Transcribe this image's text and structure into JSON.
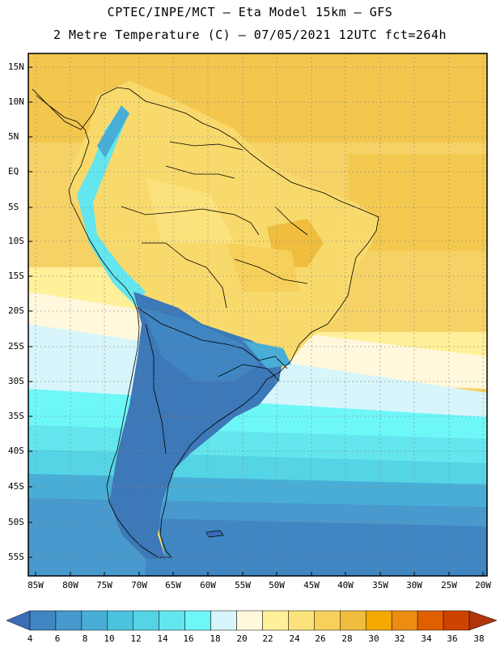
{
  "header": {
    "line1": "CPTEC/INPE/MCT –  Eta Model 15km – GFS",
    "line2": "2 Metre Temperature (C) – 07/05/2021 12UTC fct=264h"
  },
  "lat_labels": [
    "15N",
    "10N",
    "5N",
    "EQ",
    "5S",
    "10S",
    "15S",
    "20S",
    "25S",
    "30S",
    "35S",
    "40S",
    "45S",
    "50S",
    "55S"
  ],
  "lon_labels": [
    "85W",
    "80W",
    "75W",
    "70W",
    "65W",
    "60W",
    "55W",
    "50W",
    "45W",
    "40W",
    "35W",
    "30W",
    "25W",
    "20W"
  ],
  "colorbar": {
    "labels": [
      "4",
      "6",
      "8",
      "10",
      "12",
      "14",
      "16",
      "18",
      "20",
      "22",
      "24",
      "26",
      "28",
      "30",
      "32",
      "34",
      "36",
      "38"
    ],
    "colors": [
      "#3a6db6",
      "#3f86c2",
      "#4899cd",
      "#48aed7",
      "#4bc3df",
      "#55d4e6",
      "#63e6ee",
      "#6df7f7",
      "#d7f5fb",
      "#fff8dd",
      "#fff09a",
      "#fce27c",
      "#f6d05a",
      "#f0bd3e",
      "#f4a900",
      "#ec8c10",
      "#e06000",
      "#cc4400",
      "#b03508"
    ]
  },
  "map": {
    "ocean_color": "#f4cd55",
    "land_color": "#f8da6c",
    "cold_color": "#3d78b8"
  }
}
